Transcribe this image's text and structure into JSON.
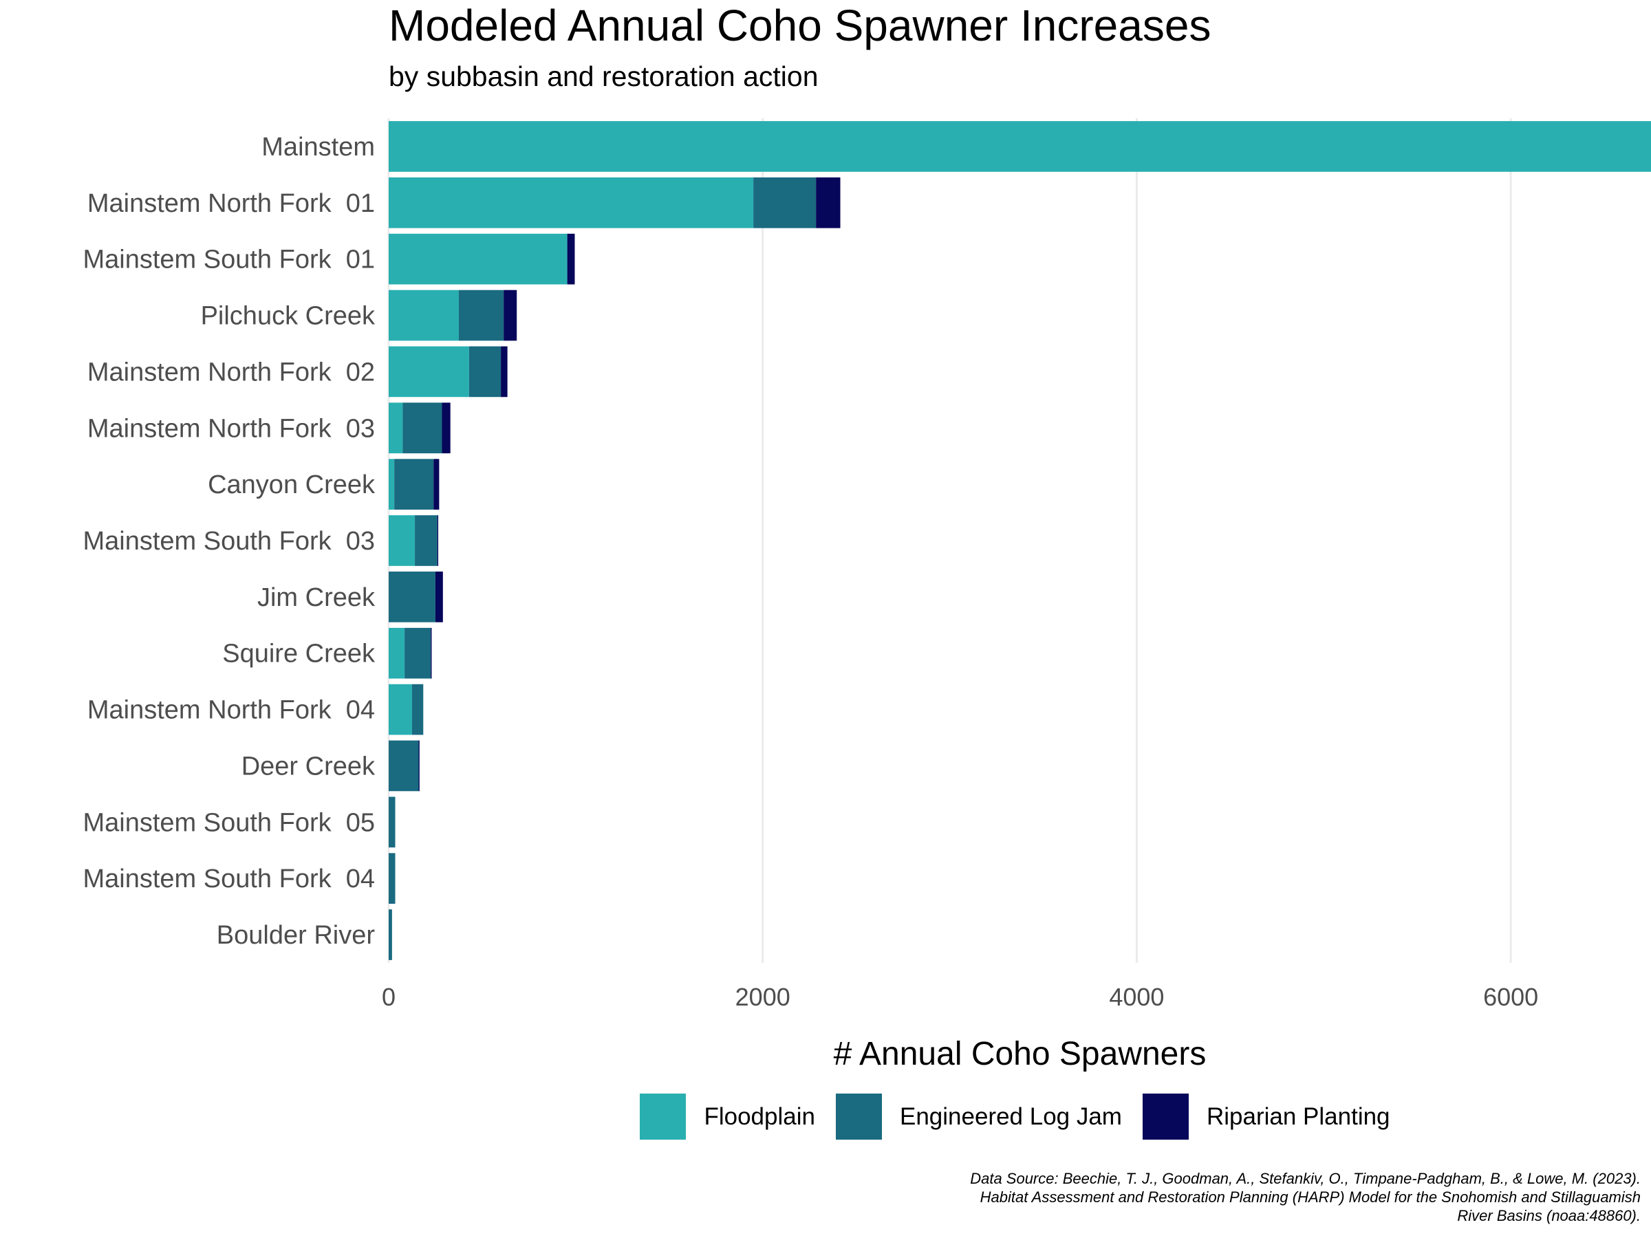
{
  "title": "Modeled Annual Coho Spawner Increases",
  "subtitle": "by subbasin and restoration action",
  "xlabel": "# Annual Coho Spawners",
  "source_lines": [
    "Data Source: Beechie, T. J., Goodman, A., Stefankiv, O., Timpane-Padgham, B., & Lowe, M. (2023).",
    "Habitat Assessment and Restoration Planning (HARP) Model for the Snohomish and Stillaguamish",
    "River Basins (noaa:48860)."
  ],
  "colors": {
    "Floodplain": "#29AFB0",
    "Engineered Log Jam": "#1A6A80",
    "Riparian Planting": "#06065A",
    "grid": "#EBEBEB"
  },
  "chart_data": {
    "type": "bar",
    "orientation": "horizontal",
    "stacked": true,
    "title": "Modeled Annual Coho Spawner Increases",
    "subtitle": "by subbasin and restoration action",
    "xlabel": "# Annual Coho Spawners",
    "ylabel": "",
    "xlim": [
      0,
      6750
    ],
    "x_ticks": [
      0,
      2000,
      4000,
      6000
    ],
    "grid": "vertical major lines",
    "legend_position": "bottom",
    "categories": [
      "Mainstem",
      "Mainstem North Fork  01",
      "Mainstem South Fork  01",
      "Pilchuck Creek",
      "Mainstem North Fork  02",
      "Mainstem North Fork  03",
      "Canyon Creek",
      "Mainstem South Fork  03",
      "Jim Creek",
      "Squire Creek",
      "Mainstem North Fork  04",
      "Deer Creek",
      "Mainstem South Fork  05",
      "Mainstem South Fork  04",
      "Boulder River"
    ],
    "series": [
      {
        "name": "Floodplain",
        "values": [
          6750,
          1950,
          955,
          375,
          430,
          75,
          30,
          140,
          0,
          85,
          125,
          0,
          0,
          0,
          0
        ]
      },
      {
        "name": "Engineered Log Jam",
        "values": [
          0,
          335,
          0,
          240,
          170,
          210,
          210,
          120,
          250,
          140,
          60,
          160,
          35,
          35,
          18
        ]
      },
      {
        "name": "Riparian Planting",
        "values": [
          0,
          130,
          40,
          70,
          35,
          45,
          30,
          5,
          40,
          5,
          0,
          5,
          0,
          0,
          0
        ]
      }
    ]
  }
}
